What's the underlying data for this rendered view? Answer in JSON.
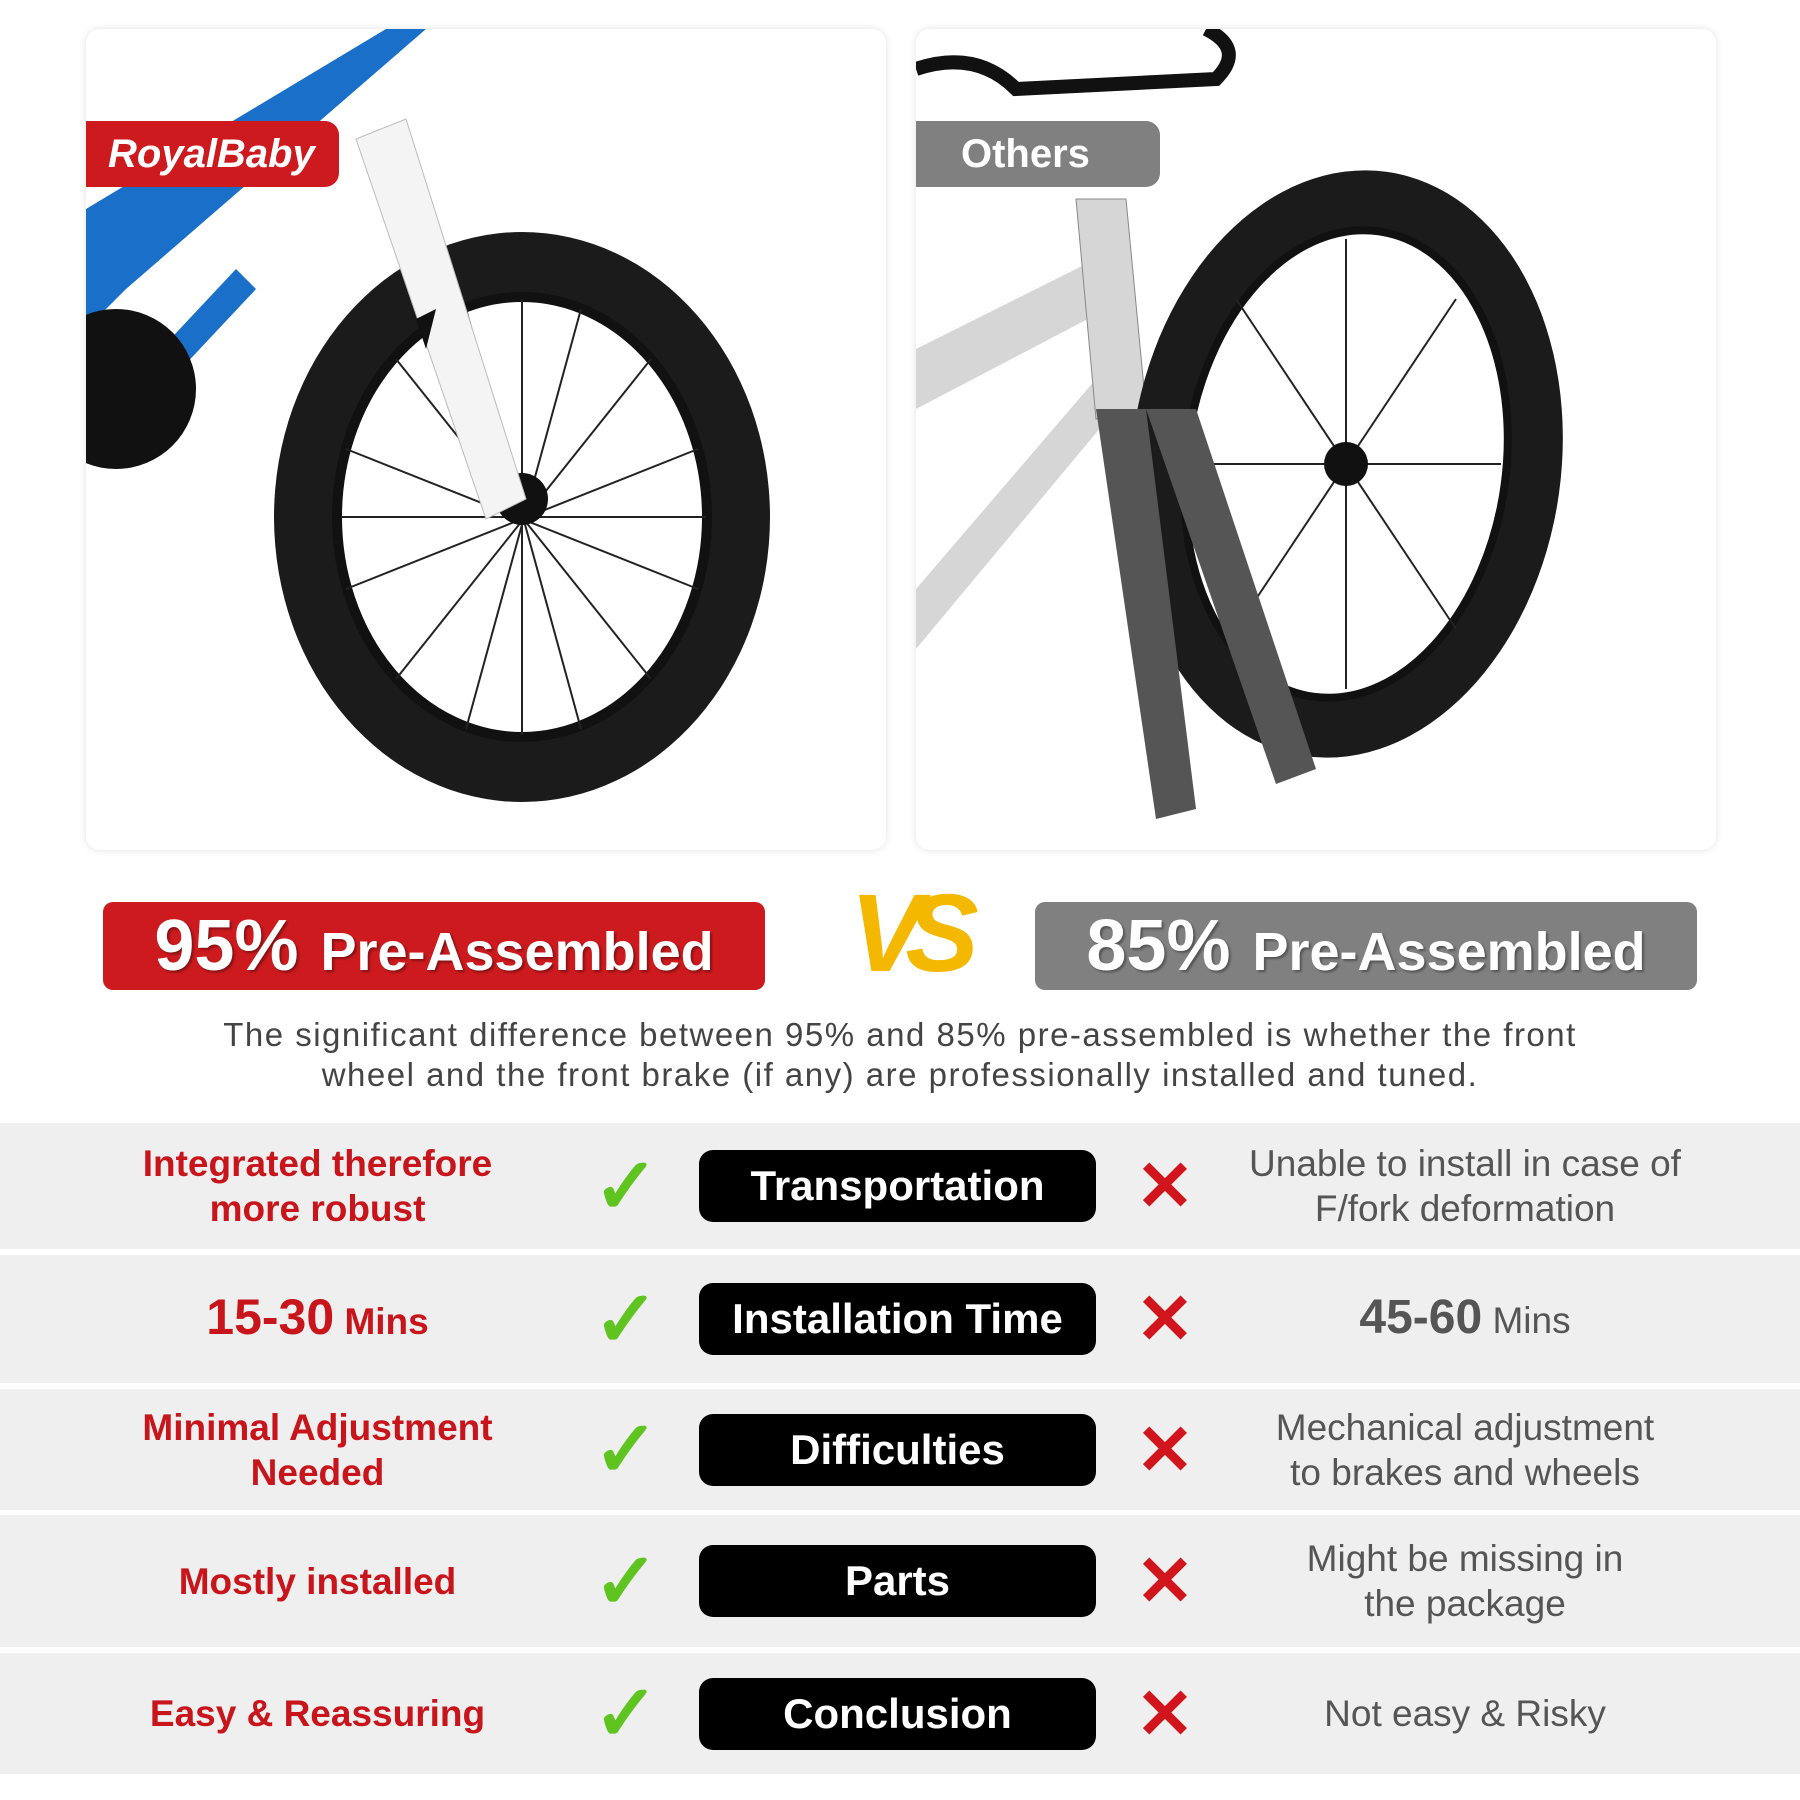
{
  "left_product": {
    "brand": "RoyalBaby",
    "percent": "95%",
    "label": "Pre-Assembled",
    "color": "#cc1a1e",
    "frame_color": "#1a6fc9"
  },
  "right_product": {
    "brand": "Others",
    "percent": "85%",
    "label": "Pre-Assembled",
    "color": "#808080",
    "frame_color": "#cfcfcf"
  },
  "vs": "VS",
  "description": [
    "The significant difference between 95% and 85% pre-assembled is whether the front",
    "wheel and the front brake (if any) are professionally installed and tuned."
  ],
  "rows": [
    {
      "category": "Transportation",
      "left": [
        "Integrated therefore",
        "more robust"
      ],
      "right": [
        "Unable to install in case of",
        "F/fork deformation"
      ]
    },
    {
      "category": "Installation Time",
      "left_value": "15-30",
      "left_unit": "Mins",
      "right_value": "45-60",
      "right_unit": "Mins"
    },
    {
      "category": "Difficulties",
      "left": [
        "Minimal Adjustment",
        "Needed"
      ],
      "right": [
        "Mechanical adjustment",
        "to brakes and wheels"
      ]
    },
    {
      "category": "Parts",
      "left": [
        "Mostly installed"
      ],
      "right": [
        "Might be missing in",
        "the package"
      ]
    },
    {
      "category": "Conclusion",
      "left": [
        "Easy & Reassuring"
      ],
      "right": [
        "Not easy & Risky"
      ]
    }
  ],
  "icons": {
    "check": "✓",
    "cross": "✕"
  }
}
